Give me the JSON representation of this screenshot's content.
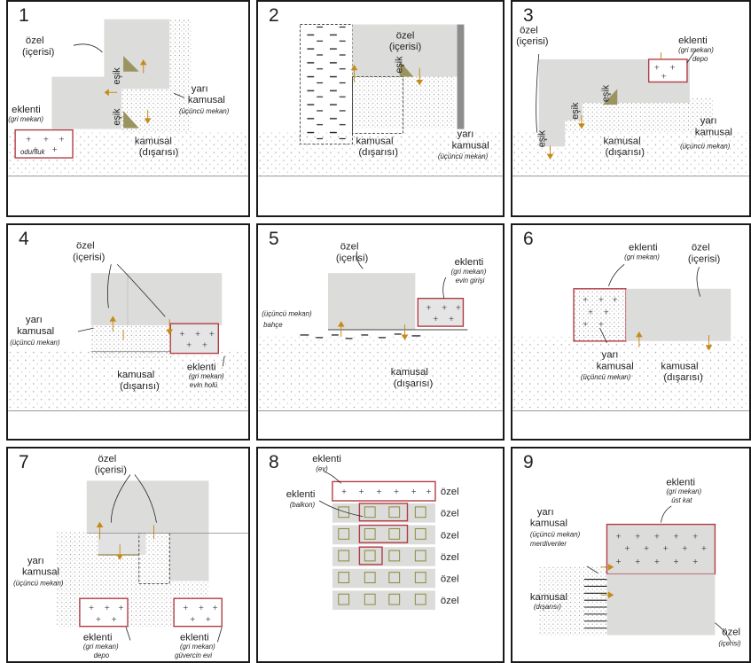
{
  "panels": [
    {
      "num": "1",
      "labels": {
        "ozel": "özel",
        "icerisi": "(içerisi)",
        "esik": "eşik",
        "yari": "yarı",
        "kamusal": "kamusal",
        "ucuncu": "(üçüncü mekan)",
        "eklenti": "eklenti",
        "gri": "(gri mekan)",
        "odunluk": "odunluk",
        "dis": "(dışarısı)"
      }
    },
    {
      "num": "2",
      "labels": {
        "ozel": "özel",
        "icerisi": "(içerisi)",
        "esik": "eşik",
        "kamusal": "kamusal",
        "dis": "(dışarısı)",
        "yari": "yarı",
        "ucuncu": "(üçüncü mekan)"
      }
    },
    {
      "num": "3",
      "labels": {
        "ozel": "özel",
        "icerisi": "(içerisi)",
        "eklenti": "eklenti",
        "gri": "(gri mekan)",
        "depo": "depo",
        "esik": "eşik",
        "yari": "yarı",
        "kamusal": "kamusal",
        "dis": "(dışarısı)",
        "ucuncu": "(üçüncü mekan)"
      }
    },
    {
      "num": "4",
      "labels": {
        "ozel": "özel",
        "icerisi": "(içerisi)",
        "yari": "yarı",
        "kamusal": "kamusal",
        "ucuncu": "(üçüncü mekan)",
        "dis": "(dışarısı)",
        "eklenti": "eklenti",
        "gri": "(gri mekan)",
        "holu": "evin holü"
      }
    },
    {
      "num": "5",
      "labels": {
        "ozel": "özel",
        "icerisi": "(içerisi)",
        "eklenti": "eklenti",
        "gri": "(gri mekan)",
        "giris": "evin girişi",
        "ucuncu": "(üçüncü mekan)",
        "bahce": "bahçe",
        "kamusal": "kamusal",
        "dis": "(dışarısı)"
      }
    },
    {
      "num": "6",
      "labels": {
        "eklenti": "eklenti",
        "gri": "(gri mekan)",
        "ozel": "özel",
        "icerisi": "(içerisi)",
        "yari": "yarı",
        "kamusal": "kamusal",
        "ucuncu": "(üçüncü mekan)",
        "dis": "(dışarısı)"
      }
    },
    {
      "num": "7",
      "labels": {
        "ozel": "özel",
        "icerisi": "(içerisi)",
        "yari": "yarı",
        "kamusal": "kamusal",
        "ucuncu": "(üçüncü mekan)",
        "eklenti": "eklenti",
        "gri": "(gri mekan)",
        "depo": "depo",
        "guvercin": "güvercin evi"
      }
    },
    {
      "num": "8",
      "labels": {
        "eklenti": "eklenti",
        "ev": "(ev)",
        "balkon": "(balkon)",
        "ozel": "özel"
      }
    },
    {
      "num": "9",
      "labels": {
        "eklenti": "eklenti",
        "gri": "(gri mekan)",
        "ustkat": "üst kat",
        "yari": "yarı",
        "kamusal": "kamusal",
        "ucuncu": "(üçüncü mekan)",
        "merdiven": "merdivenler",
        "dis": "(dışarısı)",
        "ozel": "özel",
        "icerisi": "(içerisi)"
      }
    }
  ],
  "colors": {
    "private": "#dcdcdb",
    "annex_border": "#b13a44",
    "threshold": "#9c9460",
    "arrow": "#c58b18",
    "dots": "#9a9a9a",
    "frame": "#1a1a1a"
  }
}
